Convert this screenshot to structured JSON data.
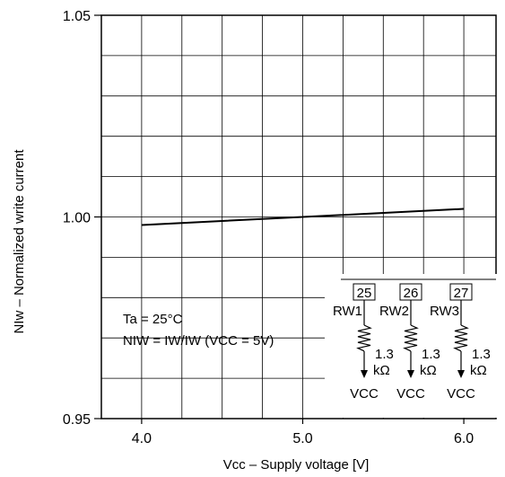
{
  "chart_data": {
    "type": "line",
    "title": "",
    "xlabel": "Vcc – Supply voltage [V]",
    "ylabel": "NIw – Normalized write current",
    "xlim": [
      3.75,
      6.2
    ],
    "ylim": [
      0.95,
      1.05
    ],
    "x_ticks": [
      4.0,
      5.0,
      6.0
    ],
    "x_tick_labels": [
      "4.0",
      "5.0",
      "6.0"
    ],
    "y_ticks": [
      0.95,
      1.0,
      1.05
    ],
    "y_tick_labels": [
      "0.95",
      "1.00",
      "1.05"
    ],
    "grid": true,
    "series": [
      {
        "x": [
          4.0,
          5.0,
          6.0
        ],
        "y": [
          0.998,
          1.0,
          1.002
        ]
      }
    ],
    "annotations": {
      "condition_line1": "Ta = 25°C",
      "condition_line2": "NIW = IW/IW (VCC = 5V)"
    },
    "inset_circuit": {
      "pins": [
        "25",
        "26",
        "27"
      ],
      "resistor_labels": [
        "RW1",
        "RW2",
        "RW3"
      ],
      "resistor_value_line1": "1.3",
      "resistor_value_line2": "kΩ",
      "supply_label": "VCC"
    }
  }
}
